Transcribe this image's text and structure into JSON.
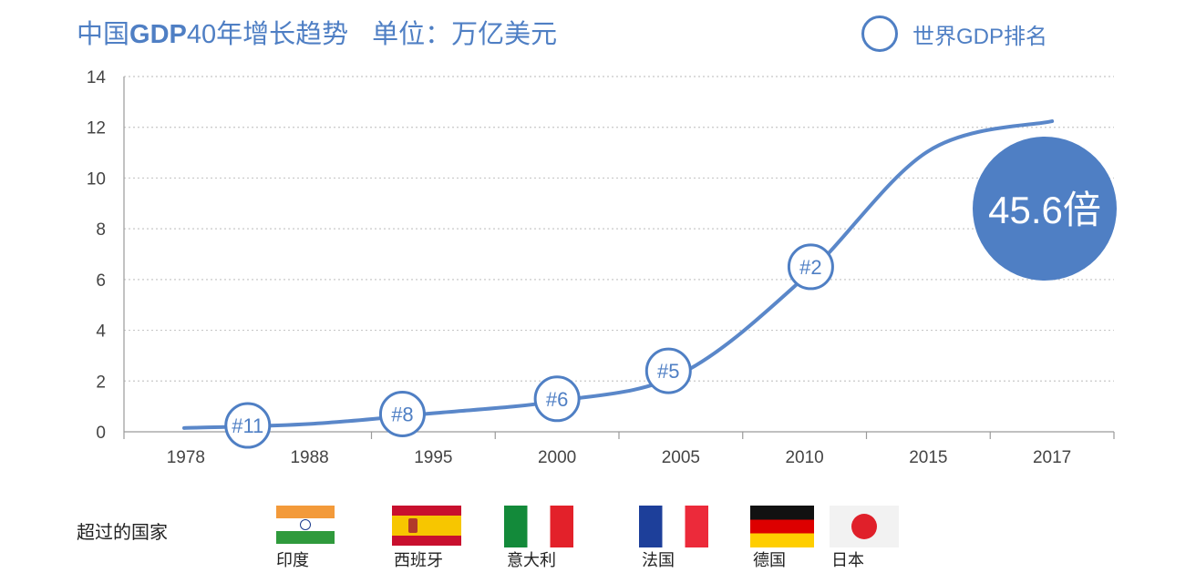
{
  "title": {
    "part1": "中国",
    "gdp": "GDP",
    "part2": "40年增长趋势",
    "unit": "单位：万亿美元"
  },
  "legend": {
    "label": "世界GDP排名"
  },
  "multiplier": "45.6倍",
  "colors": {
    "line": "#5a87c9",
    "accent": "#4f7fc4",
    "bubble": "#4f7fc4",
    "grid": "#c8c8c8",
    "axis": "#9a9a9a"
  },
  "chart_data": {
    "type": "line",
    "x_labels": [
      "1978",
      "1988",
      "1995",
      "2000",
      "2005",
      "2010",
      "2015",
      "2017"
    ],
    "series": [
      {
        "values": [
          0.15,
          0.31,
          0.73,
          1.21,
          2.29,
          6.09,
          11.06,
          12.24
        ]
      }
    ],
    "ylim": [
      0,
      14
    ],
    "yticks": [
      0,
      2,
      4,
      6,
      8,
      10,
      12,
      14
    ],
    "grid": true,
    "rank_markers": [
      {
        "label": "#11",
        "category": "1978",
        "offset": 0.5,
        "value": 0.25
      },
      {
        "label": "#8",
        "category": "1988",
        "offset": 0.75,
        "value": 0.7
      },
      {
        "label": "#6",
        "category": "2000",
        "offset": 0,
        "value": 1.3
      },
      {
        "label": "#5",
        "category": "2005",
        "offset": -0.1,
        "value": 2.4
      },
      {
        "label": "#2",
        "category": "2010",
        "offset": 0.05,
        "value": 6.5
      }
    ]
  },
  "surpassed": {
    "label": "超过的国家",
    "countries": [
      {
        "name": "印度",
        "flag": "india"
      },
      {
        "name": "西班牙",
        "flag": "spain"
      },
      {
        "name": "意大利",
        "flag": "italy"
      },
      {
        "name": "法国",
        "flag": "france"
      },
      {
        "name": "德国",
        "flag": "germany"
      },
      {
        "name": "日本",
        "flag": "japan"
      }
    ]
  }
}
